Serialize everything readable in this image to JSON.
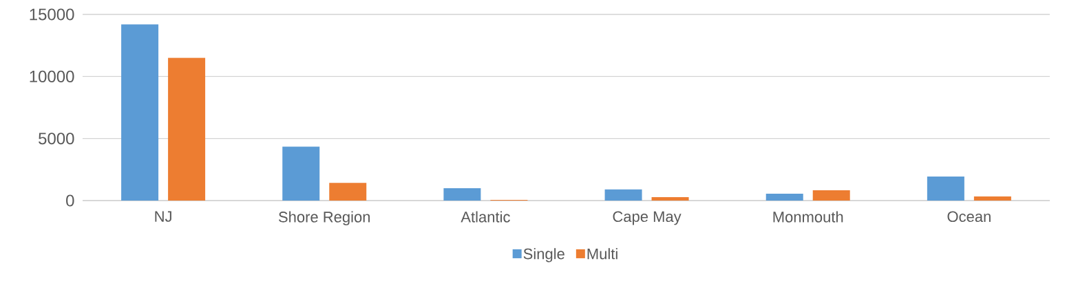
{
  "chart_data": {
    "type": "bar",
    "categories": [
      "NJ",
      "Shore Region",
      "Atlantic",
      "Cape May",
      "Monmouth",
      "Ocean"
    ],
    "series": [
      {
        "name": "Single",
        "color": "#5b9bd5",
        "values": [
          14200,
          4350,
          1000,
          900,
          550,
          1930
        ]
      },
      {
        "name": "Multi",
        "color": "#ed7d31",
        "values": [
          11500,
          1420,
          50,
          280,
          830,
          330
        ]
      }
    ],
    "ylim": [
      0,
      15000
    ],
    "yticks": [
      0,
      5000,
      10000,
      15000
    ],
    "grid": "y",
    "legend": "bottom"
  }
}
